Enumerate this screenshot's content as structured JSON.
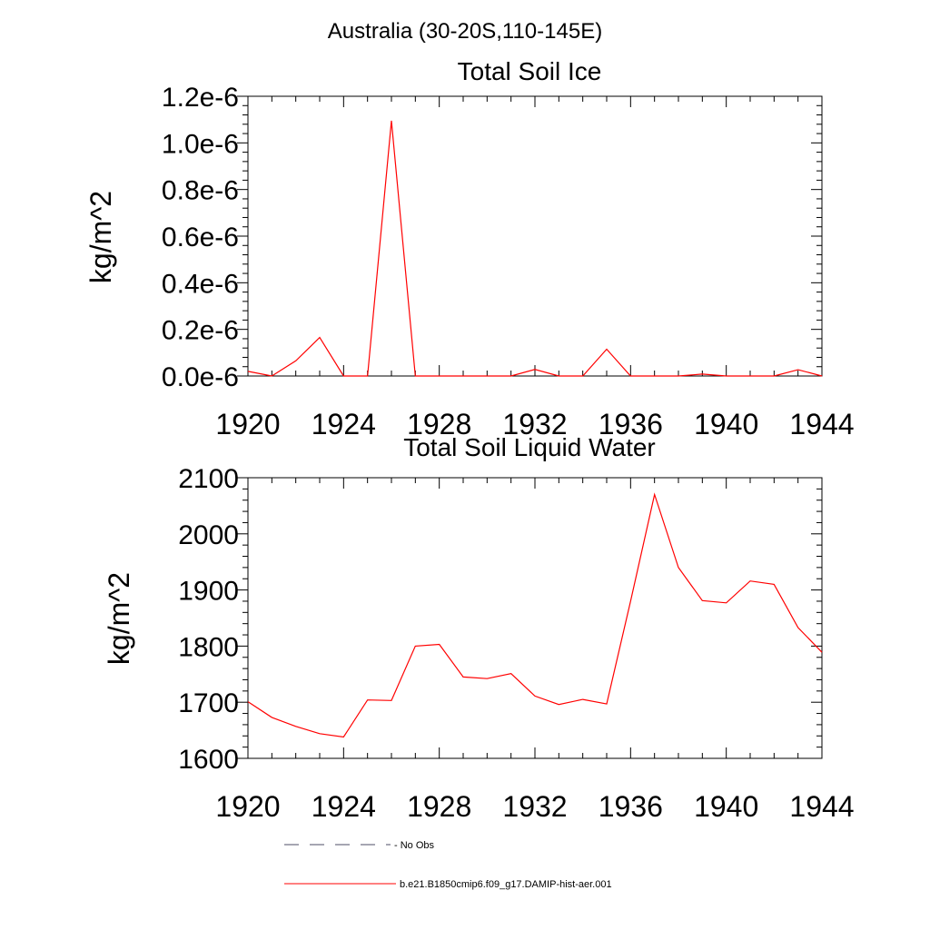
{
  "figure_title": "Australia (30-20S,110-145E)",
  "chart_data": [
    {
      "type": "line",
      "title": "Total Soil Ice",
      "xlabel": "",
      "ylabel": "kg/m^2",
      "xlim": [
        1920,
        1944
      ],
      "ylim": [
        0,
        1.2e-06
      ],
      "xticks": [
        1920,
        1924,
        1928,
        1932,
        1936,
        1940,
        1944
      ],
      "xtick_labels": [
        "1920",
        "1924",
        "1928",
        "1932",
        "1936",
        "1940",
        "1944"
      ],
      "yticks": [
        0,
        2e-07,
        4e-07,
        6e-07,
        8e-07,
        1e-06,
        1.2e-06
      ],
      "ytick_labels": [
        "0.0e-6",
        "0.2e-6",
        "0.4e-6",
        "0.6e-6",
        "0.8e-6",
        "1.0e-6",
        "1.2e-6"
      ],
      "grid": false,
      "series": [
        {
          "name": "b.e21.B1850cmip6.f09_g17.DAMIP-hist-aer.001",
          "color": "#ff0000",
          "x": [
            1920,
            1921,
            1922,
            1923,
            1924,
            1925,
            1926,
            1927,
            1928,
            1929,
            1930,
            1931,
            1932,
            1933,
            1934,
            1935,
            1936,
            1937,
            1938,
            1939,
            1940,
            1941,
            1942,
            1943,
            1944
          ],
          "y": [
            2e-08,
            0,
            6.5e-08,
            1.65e-07,
            0,
            0,
            1.095e-06,
            0,
            0,
            0,
            0,
            0,
            2.8e-08,
            0,
            0,
            1.15e-07,
            0,
            0,
            0,
            8e-09,
            0,
            0,
            0,
            2.7e-08,
            0
          ]
        }
      ]
    },
    {
      "type": "line",
      "title": "Total Soil Liquid Water",
      "xlabel": "",
      "ylabel": "kg/m^2",
      "xlim": [
        1920,
        1944
      ],
      "ylim": [
        1600,
        2100
      ],
      "xticks": [
        1920,
        1924,
        1928,
        1932,
        1936,
        1940,
        1944
      ],
      "xtick_labels": [
        "1920",
        "1924",
        "1928",
        "1932",
        "1936",
        "1940",
        "1944"
      ],
      "yticks": [
        1600,
        1700,
        1800,
        1900,
        2000,
        2100
      ],
      "ytick_labels": [
        "1600",
        "1700",
        "1800",
        "1900",
        "2000",
        "2100"
      ],
      "grid": false,
      "series": [
        {
          "name": "b.e21.B1850cmip6.f09_g17.DAMIP-hist-aer.001",
          "color": "#ff0000",
          "x": [
            1920,
            1921,
            1922,
            1923,
            1924,
            1925,
            1926,
            1927,
            1928,
            1929,
            1930,
            1931,
            1932,
            1933,
            1934,
            1935,
            1936,
            1937,
            1938,
            1939,
            1940,
            1941,
            1942,
            1943,
            1944
          ],
          "y": [
            1701,
            1673,
            1657,
            1644,
            1638,
            1704,
            1703,
            1800,
            1803,
            1745,
            1742,
            1751,
            1711,
            1696,
            1705,
            1697,
            1880,
            2070,
            1940,
            1881,
            1877,
            1916,
            1910,
            1833,
            1789
          ]
        }
      ]
    }
  ],
  "legend": {
    "placement": "bottom",
    "items": [
      {
        "label": "- No Obs",
        "style": "dashed",
        "color": "#4d4d66"
      },
      {
        "label": "b.e21.B1850cmip6.f09_g17.DAMIP-hist-aer.001",
        "style": "solid",
        "color": "#ff0000"
      }
    ]
  }
}
